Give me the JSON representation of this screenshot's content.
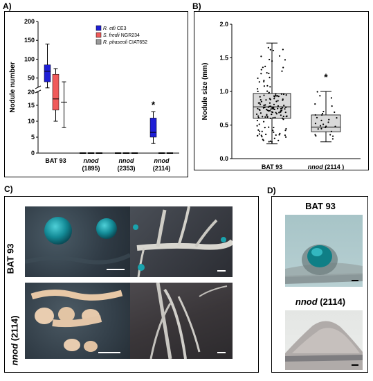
{
  "panels": {
    "a": "A)",
    "b": "B)",
    "c": "C)",
    "d": "D)"
  },
  "chart_data": [
    {
      "type": "box",
      "panel": "A)",
      "ylabel": "Nodule number",
      "ylim": [
        0,
        200
      ],
      "yticks": [
        0,
        5,
        10,
        15,
        20,
        50,
        100,
        150,
        200
      ],
      "axis_break": [
        20,
        20
      ],
      "categories": [
        "BAT 93",
        "nnod (1895)",
        "nnod (2353)",
        "nnod (2114)"
      ],
      "category_lines": [
        [
          "BAT 93"
        ],
        [
          "nnod",
          "(1895)"
        ],
        [
          "nnod",
          "(2353)"
        ],
        [
          "nnod",
          "(2114)"
        ]
      ],
      "legend": {
        "position": "top-right",
        "entries": [
          {
            "name": "R. etli CE3",
            "color": "#1f1fd6"
          },
          {
            "name": "S. fredii NGR234",
            "color": "#f05a5a"
          },
          {
            "name": "R. phaseoli CIAT652",
            "color": "#9a9a9a"
          }
        ]
      },
      "series": [
        {
          "name": "R. etli CE3",
          "color": "#1f1fd6",
          "boxes": [
            {
              "min": 24,
              "q1": 40,
              "median": 68,
              "q3": 85,
              "max": 140
            },
            null,
            null,
            {
              "min": 3,
              "q1": 5,
              "median": 6.5,
              "q3": 11,
              "max": 13
            }
          ]
        },
        {
          "name": "S. fredii NGR234",
          "color": "#f05a5a",
          "boxes": [
            {
              "min": 10,
              "q1": 13.5,
              "median": 17,
              "q3": 60,
              "max": 75
            },
            null,
            null,
            null
          ]
        },
        {
          "name": "R. phaseoli CIAT652",
          "color": "#9a9a9a",
          "boxes": [
            {
              "min": 8,
              "q1": 16,
              "median": 16,
              "q3": 16,
              "max": 40
            },
            null,
            null,
            null
          ]
        }
      ],
      "annotations": [
        {
          "text": "*",
          "category": "nnod (2114)"
        }
      ]
    },
    {
      "type": "box",
      "panel": "B)",
      "ylabel": "Nodule size (mm)",
      "ylim": [
        0.0,
        2.0
      ],
      "yticks": [
        "0.0",
        "0.5",
        "1.0",
        "1.5",
        "2.0"
      ],
      "categories": [
        "BAT 93",
        "nnod (2114 )"
      ],
      "category_lines": [
        [
          "BAT 93"
        ],
        [
          "nnod",
          " (2114 )"
        ]
      ],
      "boxes": [
        {
          "min": 0.22,
          "q1": 0.6,
          "median": 0.77,
          "q3": 0.97,
          "max": 1.72
        },
        {
          "min": 0.25,
          "q1": 0.4,
          "median": 0.47,
          "q3": 0.65,
          "max": 1.0
        }
      ],
      "points_n": [
        150,
        30
      ],
      "annotations": [
        {
          "text": "*",
          "category": "nnod (2114 )"
        }
      ]
    }
  ],
  "photos": {
    "c": {
      "row1_label": "BAT 93",
      "row2_label_italic": "nnod",
      "row2_label_rest": " (2114)"
    },
    "d": {
      "top_label": "BAT 93",
      "bottom_label_italic": "nnod",
      "bottom_label_rest": " (2114)"
    }
  }
}
